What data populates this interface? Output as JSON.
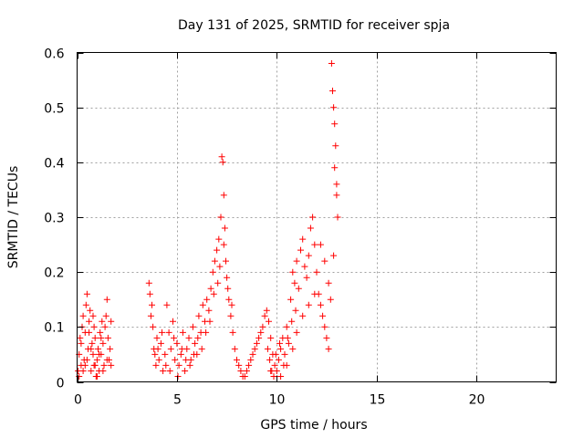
{
  "chart_data": {
    "type": "scatter",
    "title": "Day 131 of 2025, SRMTID for receiver spja",
    "xlabel": "GPS time / hours",
    "ylabel": "SRMTID / TECUs",
    "xlim": [
      0,
      24
    ],
    "ylim": [
      0,
      0.6
    ],
    "x_ticks": [
      0,
      5,
      10,
      15,
      20
    ],
    "x_tick_labels": [
      "0",
      "5",
      "10",
      "15",
      "20"
    ],
    "y_ticks": [
      0,
      0.1,
      0.2,
      0.3,
      0.4,
      0.5,
      0.6
    ],
    "y_tick_labels": [
      "0",
      "0.1",
      "0.2",
      "0.3",
      "0.4",
      "0.5",
      "0.6"
    ],
    "grid": true,
    "marker": "plus",
    "color": "#ff0000",
    "series": [
      {
        "name": "SRMTID",
        "points": [
          [
            0.05,
            0.02
          ],
          [
            0.1,
            0.05
          ],
          [
            0.15,
            0.08
          ],
          [
            0.2,
            0.03
          ],
          [
            0.25,
            0.1
          ],
          [
            0.3,
            0.12
          ],
          [
            0.35,
            0.04
          ],
          [
            0.4,
            0.09
          ],
          [
            0.45,
            0.14
          ],
          [
            0.5,
            0.16
          ],
          [
            0.55,
            0.06
          ],
          [
            0.6,
            0.11
          ],
          [
            0.65,
            0.13
          ],
          [
            0.7,
            0.02
          ],
          [
            0.75,
            0.07
          ],
          [
            0.8,
            0.05
          ],
          [
            0.85,
            0.03
          ],
          [
            0.9,
            0.08
          ],
          [
            0.95,
            0.01
          ],
          [
            1.0,
            0.04
          ],
          [
            1.05,
            0.06
          ],
          [
            1.1,
            0.02
          ],
          [
            1.15,
            0.09
          ],
          [
            1.2,
            0.05
          ],
          [
            1.25,
            0.11
          ],
          [
            1.3,
            0.07
          ],
          [
            1.35,
            0.03
          ],
          [
            1.4,
            0.1
          ],
          [
            1.45,
            0.12
          ],
          [
            1.5,
            0.15
          ],
          [
            1.55,
            0.08
          ],
          [
            1.6,
            0.04
          ],
          [
            1.65,
            0.06
          ],
          [
            1.7,
            0.11
          ],
          [
            0.2,
            0.07
          ],
          [
            0.4,
            0.03
          ],
          [
            0.6,
            0.09
          ],
          [
            0.8,
            0.12
          ],
          [
            1.0,
            0.01
          ],
          [
            1.2,
            0.08
          ],
          [
            3.6,
            0.18
          ],
          [
            3.65,
            0.16
          ],
          [
            3.7,
            0.12
          ],
          [
            3.75,
            0.14
          ],
          [
            3.8,
            0.1
          ],
          [
            3.85,
            0.06
          ],
          [
            3.9,
            0.05
          ],
          [
            3.95,
            0.03
          ],
          [
            4.0,
            0.08
          ],
          [
            4.1,
            0.04
          ],
          [
            4.2,
            0.07
          ],
          [
            4.3,
            0.02
          ],
          [
            4.4,
            0.05
          ],
          [
            4.5,
            0.14
          ],
          [
            4.6,
            0.09
          ],
          [
            4.7,
            0.06
          ],
          [
            4.8,
            0.11
          ],
          [
            4.9,
            0.04
          ],
          [
            5.0,
            0.07
          ],
          [
            5.1,
            0.03
          ],
          [
            5.2,
            0.05
          ],
          [
            5.3,
            0.09
          ],
          [
            5.4,
            0.02
          ],
          [
            5.5,
            0.06
          ],
          [
            5.6,
            0.08
          ],
          [
            5.7,
            0.04
          ],
          [
            5.8,
            0.1
          ],
          [
            5.9,
            0.07
          ],
          [
            6.0,
            0.05
          ],
          [
            6.1,
            0.12
          ],
          [
            6.2,
            0.09
          ],
          [
            6.3,
            0.14
          ],
          [
            6.4,
            0.11
          ],
          [
            6.5,
            0.15
          ],
          [
            6.6,
            0.13
          ],
          [
            6.7,
            0.17
          ],
          [
            6.8,
            0.2
          ],
          [
            6.9,
            0.22
          ],
          [
            7.0,
            0.24
          ],
          [
            7.1,
            0.26
          ],
          [
            7.2,
            0.3
          ],
          [
            7.25,
            0.41
          ],
          [
            7.3,
            0.4
          ],
          [
            7.35,
            0.34
          ],
          [
            7.4,
            0.28
          ],
          [
            7.45,
            0.22
          ],
          [
            7.5,
            0.19
          ],
          [
            7.6,
            0.15
          ],
          [
            7.7,
            0.12
          ],
          [
            7.8,
            0.09
          ],
          [
            7.9,
            0.06
          ],
          [
            8.0,
            0.04
          ],
          [
            8.1,
            0.03
          ],
          [
            8.2,
            0.02
          ],
          [
            8.3,
            0.01
          ],
          [
            8.4,
            0.01
          ],
          [
            8.5,
            0.02
          ],
          [
            8.6,
            0.03
          ],
          [
            8.7,
            0.04
          ],
          [
            8.8,
            0.05
          ],
          [
            8.9,
            0.06
          ],
          [
            9.0,
            0.07
          ],
          [
            9.1,
            0.08
          ],
          [
            9.2,
            0.09
          ],
          [
            9.3,
            0.1
          ],
          [
            9.4,
            0.12
          ],
          [
            9.5,
            0.13
          ],
          [
            9.6,
            0.11
          ],
          [
            9.7,
            0.08
          ],
          [
            9.8,
            0.05
          ],
          [
            9.9,
            0.03
          ],
          [
            10.0,
            0.02
          ],
          [
            10.1,
            0.04
          ],
          [
            10.2,
            0.06
          ],
          [
            10.3,
            0.08
          ],
          [
            10.4,
            0.05
          ],
          [
            10.5,
            0.1
          ],
          [
            10.6,
            0.07
          ],
          [
            10.7,
            0.15
          ],
          [
            10.8,
            0.2
          ],
          [
            10.9,
            0.18
          ],
          [
            11.0,
            0.22
          ],
          [
            11.1,
            0.17
          ],
          [
            11.2,
            0.24
          ],
          [
            11.3,
            0.26
          ],
          [
            11.4,
            0.21
          ],
          [
            11.5,
            0.19
          ],
          [
            11.6,
            0.23
          ],
          [
            11.7,
            0.28
          ],
          [
            11.8,
            0.3
          ],
          [
            11.9,
            0.25
          ],
          [
            12.0,
            0.2
          ],
          [
            12.1,
            0.16
          ],
          [
            12.2,
            0.14
          ],
          [
            12.3,
            0.12
          ],
          [
            12.4,
            0.1
          ],
          [
            12.5,
            0.08
          ],
          [
            12.6,
            0.06
          ],
          [
            12.7,
            0.15
          ],
          [
            12.75,
            0.58
          ],
          [
            12.8,
            0.53
          ],
          [
            12.85,
            0.5
          ],
          [
            12.9,
            0.47
          ],
          [
            12.95,
            0.43
          ],
          [
            13.0,
            0.36
          ],
          [
            13.05,
            0.3
          ],
          [
            13.0,
            0.34
          ],
          [
            12.9,
            0.39
          ],
          [
            12.85,
            0.23
          ],
          [
            12.6,
            0.18
          ],
          [
            12.4,
            0.22
          ],
          [
            12.2,
            0.25
          ],
          [
            11.9,
            0.16
          ],
          [
            11.6,
            0.14
          ],
          [
            11.3,
            0.12
          ],
          [
            11.0,
            0.09
          ],
          [
            10.8,
            0.06
          ],
          [
            10.5,
            0.03
          ],
          [
            10.2,
            0.01
          ],
          [
            9.7,
            0.02
          ],
          [
            4.05,
            0.06
          ],
          [
            4.25,
            0.09
          ],
          [
            4.45,
            0.03
          ],
          [
            4.65,
            0.02
          ],
          [
            4.85,
            0.08
          ],
          [
            5.05,
            0.01
          ],
          [
            5.25,
            0.06
          ],
          [
            5.45,
            0.04
          ],
          [
            5.65,
            0.03
          ],
          [
            5.85,
            0.05
          ],
          [
            6.05,
            0.08
          ],
          [
            6.25,
            0.06
          ],
          [
            6.45,
            0.09
          ],
          [
            6.65,
            0.11
          ],
          [
            6.85,
            0.16
          ],
          [
            7.05,
            0.18
          ],
          [
            7.15,
            0.21
          ],
          [
            7.35,
            0.25
          ],
          [
            7.55,
            0.17
          ],
          [
            7.75,
            0.14
          ],
          [
            0.1,
            0.01
          ],
          [
            0.3,
            0.02
          ],
          [
            0.5,
            0.04
          ],
          [
            0.7,
            0.06
          ],
          [
            0.9,
            0.03
          ],
          [
            1.1,
            0.05
          ],
          [
            1.3,
            0.02
          ],
          [
            1.5,
            0.04
          ],
          [
            1.7,
            0.03
          ],
          [
            0.85,
            0.1
          ],
          [
            9.55,
            0.06
          ],
          [
            9.65,
            0.04
          ],
          [
            9.75,
            0.02
          ],
          [
            9.85,
            0.01
          ],
          [
            9.95,
            0.05
          ],
          [
            10.15,
            0.07
          ],
          [
            10.35,
            0.03
          ],
          [
            10.55,
            0.08
          ],
          [
            10.75,
            0.11
          ],
          [
            10.95,
            0.13
          ]
        ]
      }
    ]
  }
}
